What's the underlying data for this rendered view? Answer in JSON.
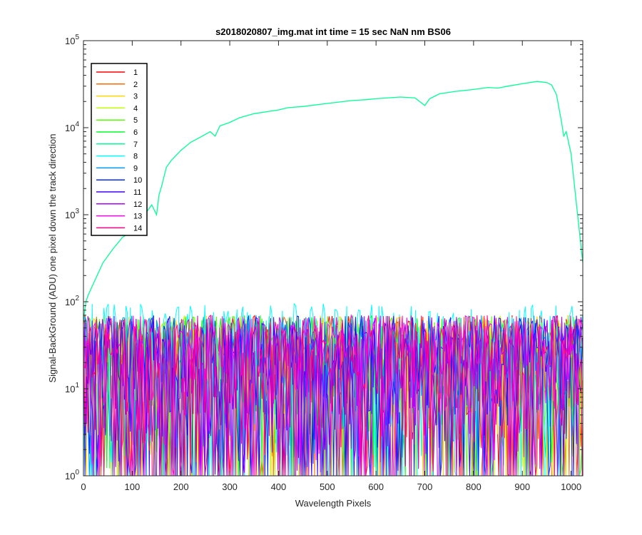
{
  "chart_data": {
    "type": "line",
    "title": "s2018020807_img.mat int time = 15 sec  NaN nm BS06",
    "xlabel": "Wavelength Pixels",
    "ylabel": "Signal-BackGround (ADU) one pixel down the track direction",
    "xlim": [
      0,
      1024
    ],
    "ylim": [
      1,
      100000
    ],
    "yscale": "log",
    "grid": false,
    "legend_position": "top-left",
    "x_ticks": [
      "0",
      "100",
      "200",
      "300",
      "400",
      "500",
      "600",
      "700",
      "800",
      "900",
      "1000"
    ],
    "x_tick_values": [
      0,
      100,
      200,
      300,
      400,
      500,
      600,
      700,
      800,
      900,
      1000
    ],
    "y_tick_exponents": [
      "0",
      "1",
      "2",
      "3",
      "4",
      "5"
    ],
    "y_tick_base": "10",
    "series": [
      {
        "name": "1",
        "color": "#ff0000",
        "kind": "noise"
      },
      {
        "name": "2",
        "color": "#ff6a00",
        "kind": "noise"
      },
      {
        "name": "3",
        "color": "#ffd500",
        "kind": "noise"
      },
      {
        "name": "4",
        "color": "#bfff00",
        "kind": "noise"
      },
      {
        "name": "5",
        "color": "#55ff00",
        "kind": "noise"
      },
      {
        "name": "6",
        "color": "#00ff2a",
        "kind": "noise"
      },
      {
        "name": "7",
        "color": "#00ff95",
        "kind": "signal",
        "x": [
          0,
          5,
          10,
          20,
          40,
          60,
          80,
          100,
          120,
          140,
          150,
          155,
          160,
          170,
          180,
          200,
          220,
          240,
          260,
          270,
          280,
          300,
          320,
          350,
          400,
          420,
          450,
          500,
          550,
          580,
          600,
          650,
          680,
          700,
          710,
          730,
          760,
          800,
          830,
          850,
          870,
          900,
          930,
          950,
          960,
          970,
          980,
          985,
          990,
          1000,
          1010,
          1024
        ],
        "y": [
          60,
          100,
          120,
          160,
          280,
          400,
          550,
          650,
          900,
          1300,
          1000,
          1700,
          2100,
          3500,
          4200,
          5500,
          6800,
          7800,
          9000,
          8000,
          10500,
          11500,
          13000,
          14500,
          16000,
          17000,
          17500,
          19000,
          20500,
          21000,
          21500,
          22500,
          22000,
          18000,
          21500,
          24500,
          26000,
          27500,
          29000,
          28500,
          30000,
          32000,
          34000,
          33000,
          31000,
          24000,
          12000,
          8000,
          9000,
          5000,
          1500,
          280
        ]
      },
      {
        "name": "8",
        "color": "#00ffff",
        "kind": "noise"
      },
      {
        "name": "9",
        "color": "#0095ff",
        "kind": "noise"
      },
      {
        "name": "10",
        "color": "#002aff",
        "kind": "noise"
      },
      {
        "name": "11",
        "color": "#4000ff",
        "kind": "noise"
      },
      {
        "name": "12",
        "color": "#aa00ff",
        "kind": "noise"
      },
      {
        "name": "13",
        "color": "#ff00ea",
        "kind": "noise"
      },
      {
        "name": "14",
        "color": "#ff0080",
        "kind": "noise"
      }
    ],
    "noise_range": [
      1,
      100
    ]
  }
}
